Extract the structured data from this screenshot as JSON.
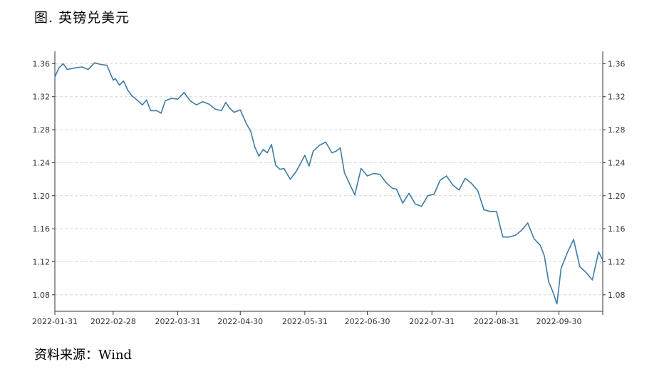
{
  "title": "图. 英镑兑美元",
  "source": "资料来源：Wind",
  "chart_data": {
    "type": "line",
    "title": "图. 英镑兑美元",
    "xlabel": "",
    "ylabel": "",
    "ylim": [
      1.06,
      1.375
    ],
    "y_ticks": [
      "1.08",
      "1.12",
      "1.16",
      "1.20",
      "1.24",
      "1.28",
      "1.32",
      "1.36"
    ],
    "x_ticks": [
      "2022-01-31",
      "2022-02-28",
      "2022-03-31",
      "2022-04-30",
      "2022-05-31",
      "2022-06-30",
      "2022-07-31",
      "2022-08-31",
      "2022-09-30"
    ],
    "grid": "horizontal dashed",
    "line_color": "#3f7aa6",
    "series": [
      {
        "x": [
          "2022-01-31",
          "2022-02-02",
          "2022-02-04",
          "2022-02-06",
          "2022-02-08",
          "2022-02-10",
          "2022-02-13",
          "2022-02-16",
          "2022-02-19",
          "2022-02-22",
          "2022-02-25",
          "2022-02-28",
          "2022-03-01",
          "2022-03-03",
          "2022-03-05",
          "2022-03-07",
          "2022-03-09",
          "2022-03-11",
          "2022-03-14",
          "2022-03-16",
          "2022-03-18",
          "2022-03-21",
          "2022-03-23",
          "2022-03-25",
          "2022-03-28",
          "2022-03-31",
          "2022-04-03",
          "2022-04-06",
          "2022-04-09",
          "2022-04-12",
          "2022-04-15",
          "2022-04-18",
          "2022-04-21",
          "2022-04-23",
          "2022-04-25",
          "2022-04-27",
          "2022-04-30",
          "2022-05-03",
          "2022-05-05",
          "2022-05-07",
          "2022-05-09",
          "2022-05-11",
          "2022-05-13",
          "2022-05-15",
          "2022-05-17",
          "2022-05-19",
          "2022-05-21",
          "2022-05-24",
          "2022-05-27",
          "2022-05-31",
          "2022-06-02",
          "2022-06-04",
          "2022-06-07",
          "2022-06-10",
          "2022-06-13",
          "2022-06-15",
          "2022-06-17",
          "2022-06-19",
          "2022-06-21",
          "2022-06-24",
          "2022-06-27",
          "2022-06-30",
          "2022-07-03",
          "2022-07-06",
          "2022-07-09",
          "2022-07-12",
          "2022-07-14",
          "2022-07-17",
          "2022-07-20",
          "2022-07-23",
          "2022-07-26",
          "2022-07-29",
          "2022-08-01",
          "2022-08-04",
          "2022-08-07",
          "2022-08-10",
          "2022-08-13",
          "2022-08-16",
          "2022-08-19",
          "2022-08-22",
          "2022-08-25",
          "2022-08-28",
          "2022-08-31",
          "2022-09-03",
          "2022-09-06",
          "2022-09-09",
          "2022-09-12",
          "2022-09-15",
          "2022-09-18",
          "2022-09-21",
          "2022-09-23",
          "2022-09-25",
          "2022-09-27",
          "2022-09-29",
          "2022-10-01",
          "2022-10-04",
          "2022-10-07",
          "2022-10-10",
          "2022-10-13",
          "2022-10-16",
          "2022-10-19",
          "2022-10-21"
        ],
        "y": [
          1.344,
          1.355,
          1.36,
          1.353,
          1.354,
          1.355,
          1.356,
          1.353,
          1.361,
          1.359,
          1.358,
          1.34,
          1.342,
          1.334,
          1.339,
          1.328,
          1.321,
          1.317,
          1.31,
          1.316,
          1.303,
          1.303,
          1.3,
          1.315,
          1.318,
          1.317,
          1.325,
          1.315,
          1.31,
          1.314,
          1.311,
          1.305,
          1.303,
          1.313,
          1.306,
          1.301,
          1.304,
          1.287,
          1.278,
          1.259,
          1.248,
          1.256,
          1.252,
          1.262,
          1.237,
          1.232,
          1.233,
          1.22,
          1.23,
          1.249,
          1.236,
          1.254,
          1.261,
          1.265,
          1.252,
          1.254,
          1.258,
          1.228,
          1.217,
          1.201,
          1.233,
          1.224,
          1.227,
          1.226,
          1.216,
          1.209,
          1.208,
          1.191,
          1.203,
          1.19,
          1.187,
          1.2,
          1.202,
          1.219,
          1.224,
          1.213,
          1.207,
          1.221,
          1.215,
          1.206,
          1.183,
          1.181,
          1.181,
          1.15,
          1.15,
          1.152,
          1.158,
          1.167,
          1.148,
          1.14,
          1.127,
          1.096,
          1.084,
          1.069,
          1.112,
          1.131,
          1.147,
          1.114,
          1.107,
          1.098,
          1.132,
          1.122
        ]
      }
    ]
  }
}
